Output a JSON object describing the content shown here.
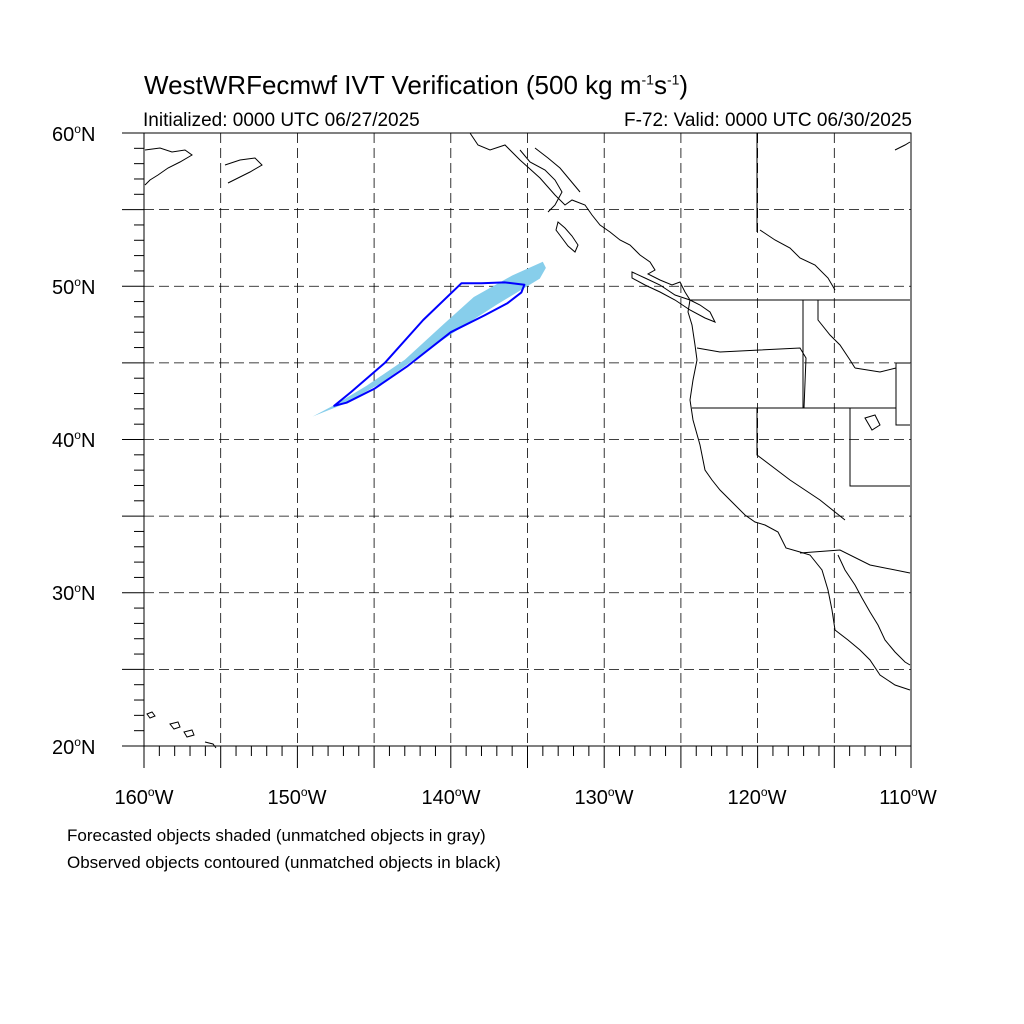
{
  "title": {
    "main": "WestWRFecmwf IVT Verification (500 kg m",
    "exp1": "-1",
    "mid": "s",
    "exp2": "-1",
    "end": ")"
  },
  "subtitle": {
    "initialized": "Initialized: 0000 UTC 06/27/2025",
    "valid": "F-72: Valid: 0000 UTC 06/30/2025"
  },
  "axes": {
    "lat_labels": [
      {
        "value": "60",
        "suffix": "N"
      },
      {
        "value": "50",
        "suffix": "N"
      },
      {
        "value": "40",
        "suffix": "N"
      },
      {
        "value": "30",
        "suffix": "N"
      },
      {
        "value": "20",
        "suffix": "N"
      }
    ],
    "lon_labels": [
      {
        "value": "160",
        "suffix": "W"
      },
      {
        "value": "150",
        "suffix": "W"
      },
      {
        "value": "140",
        "suffix": "W"
      },
      {
        "value": "130",
        "suffix": "W"
      },
      {
        "value": "120",
        "suffix": "W"
      },
      {
        "value": "110",
        "suffix": "W"
      }
    ],
    "degree_symbol": "o",
    "lat_range": [
      20,
      60
    ],
    "lon_range": [
      -160,
      -110
    ],
    "grid_step_deg": 5,
    "grid_style": "dashed"
  },
  "objects": {
    "forecast_fill_color": "#87ceeb",
    "observed_contour_color": "#0000ff",
    "forecast_polygon": [
      [
        -149.0,
        41.5
      ],
      [
        -147.5,
        42.3
      ],
      [
        -145.5,
        43.5
      ],
      [
        -143.0,
        45.2
      ],
      [
        -140.5,
        47.5
      ],
      [
        -138.5,
        49.3
      ],
      [
        -136.0,
        50.7
      ],
      [
        -134.0,
        51.6
      ],
      [
        -133.8,
        51.2
      ],
      [
        -134.2,
        50.5
      ],
      [
        -135.5,
        49.7
      ],
      [
        -137.0,
        48.8
      ],
      [
        -139.5,
        47.2
      ],
      [
        -142.0,
        45.5
      ],
      [
        -144.5,
        43.7
      ],
      [
        -147.0,
        42.3
      ]
    ],
    "observed_polygon": [
      [
        -147.6,
        42.2
      ],
      [
        -146.5,
        43.1
      ],
      [
        -144.3,
        45.0
      ],
      [
        -141.8,
        47.8
      ],
      [
        -139.3,
        50.2
      ],
      [
        -138.0,
        50.2
      ],
      [
        -136.5,
        50.25
      ],
      [
        -135.2,
        50.1
      ],
      [
        -135.4,
        49.6
      ],
      [
        -136.3,
        48.9
      ],
      [
        -137.8,
        48.1
      ],
      [
        -140.0,
        47.0
      ],
      [
        -142.8,
        44.8
      ],
      [
        -145.0,
        43.3
      ],
      [
        -146.8,
        42.4
      ]
    ]
  },
  "notes": {
    "forecast": "Forecasted objects shaded (unmatched objects in gray)",
    "observed": "Observed objects contoured (unmatched objects in black)"
  }
}
